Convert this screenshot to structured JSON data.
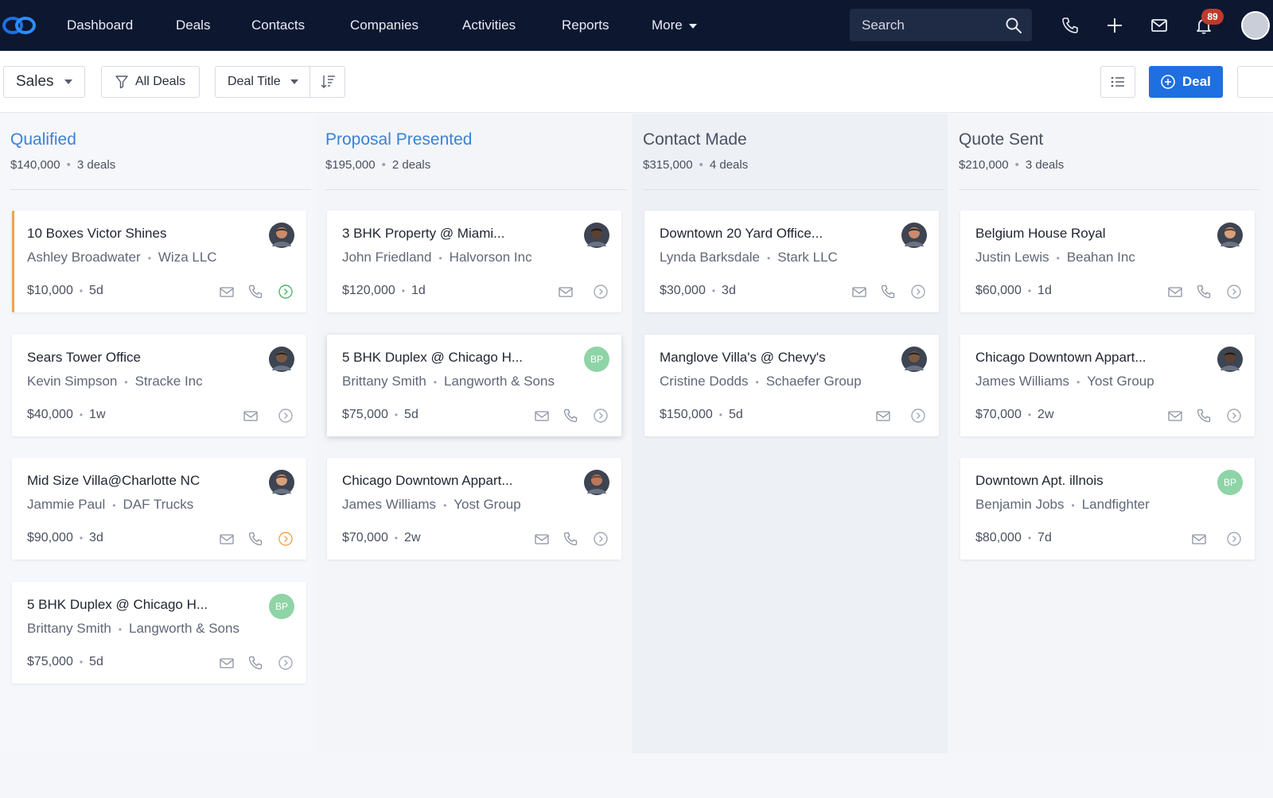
{
  "nav": {
    "items": [
      "Dashboard",
      "Deals",
      "Contacts",
      "Companies",
      "Activities",
      "Reports",
      "More"
    ],
    "search_placeholder": "Search",
    "notifications_count": "89"
  },
  "toolbar": {
    "pipeline": "Sales",
    "filter": "All Deals",
    "sort_field": "Deal Title",
    "new_deal": "Deal"
  },
  "colors": {
    "nav_bg": "#0d1730",
    "accent_blue": "#1e6fe0",
    "active_column_title": "#3a82d6",
    "warning": "#f0a451",
    "success": "#52b36b"
  },
  "columns": [
    {
      "title": "Qualified",
      "amount": "$140,000",
      "count": "3 deals",
      "active": true,
      "cards": [
        {
          "title": "10 Boxes Victor Shines",
          "contact": "Ashley Broadwater",
          "company": "Wiza LLC",
          "value": "$10,000",
          "age": "5d",
          "avatar": "photo",
          "status": "green",
          "accent": true
        },
        {
          "title": "Sears Tower Office",
          "contact": "Kevin Simpson",
          "company": "Stracke Inc",
          "value": "$40,000",
          "age": "1w",
          "avatar": "photo",
          "status": "grey",
          "no_phone": true
        },
        {
          "title": "Mid Size Villa@Charlotte NC",
          "contact": "Jammie Paul",
          "company": "DAF Trucks",
          "value": "$90,000",
          "age": "3d",
          "avatar": "photo",
          "status": "orange"
        },
        {
          "title": "5 BHK Duplex @ Chicago H...",
          "contact": "Brittany Smith",
          "company": "Langworth & Sons",
          "value": "$75,000",
          "age": "5d",
          "avatar": "BP",
          "status": "grey"
        }
      ]
    },
    {
      "title": "Proposal Presented",
      "amount": "$195,000",
      "count": "2 deals",
      "active": true,
      "cards": [
        {
          "title": "3 BHK Property @ Miami...",
          "contact": "John Friedland",
          "company": "Halvorson Inc",
          "value": "$120,000",
          "age": "1d",
          "avatar": "photo",
          "status": "grey",
          "no_phone": true
        },
        {
          "title": "5 BHK Duplex @ Chicago H...",
          "contact": "Brittany Smith",
          "company": "Langworth & Sons",
          "value": "$75,000",
          "age": "5d",
          "avatar": "BP",
          "status": "grey",
          "raised": true
        },
        {
          "title": "Chicago Downtown Appart...",
          "contact": "James Williams",
          "company": "Yost Group",
          "value": "$70,000",
          "age": "2w",
          "avatar": "photo",
          "status": "grey"
        }
      ]
    },
    {
      "title": "Contact Made",
      "amount": "$315,000",
      "count": "4 deals",
      "active": false,
      "cards": [
        {
          "title": "Downtown 20 Yard Office...",
          "contact": "Lynda Barksdale",
          "company": "Stark LLC",
          "value": "$30,000",
          "age": "3d",
          "avatar": "photo",
          "status": "grey"
        },
        {
          "title": "Manglove Villa's @ Chevy's",
          "contact": "Cristine Dodds",
          "company": "Schaefer Group",
          "value": "$150,000",
          "age": "5d",
          "avatar": "photo",
          "status": "grey",
          "no_phone": true
        }
      ]
    },
    {
      "title": "Quote Sent",
      "amount": "$210,000",
      "count": "3 deals",
      "active": false,
      "cards": [
        {
          "title": "Belgium House Royal",
          "contact": "Justin Lewis",
          "company": "Beahan Inc",
          "value": "$60,000",
          "age": "1d",
          "avatar": "photo",
          "status": "grey"
        },
        {
          "title": "Chicago Downtown Appart...",
          "contact": "James Williams",
          "company": "Yost Group",
          "value": "$70,000",
          "age": "2w",
          "avatar": "photo",
          "status": "grey"
        },
        {
          "title": "Downtown Apt. illnois",
          "contact": "Benjamin Jobs",
          "company": "Landfighter",
          "value": "$80,000",
          "age": "7d",
          "avatar": "BP",
          "status": "grey",
          "no_phone": true
        }
      ]
    }
  ]
}
